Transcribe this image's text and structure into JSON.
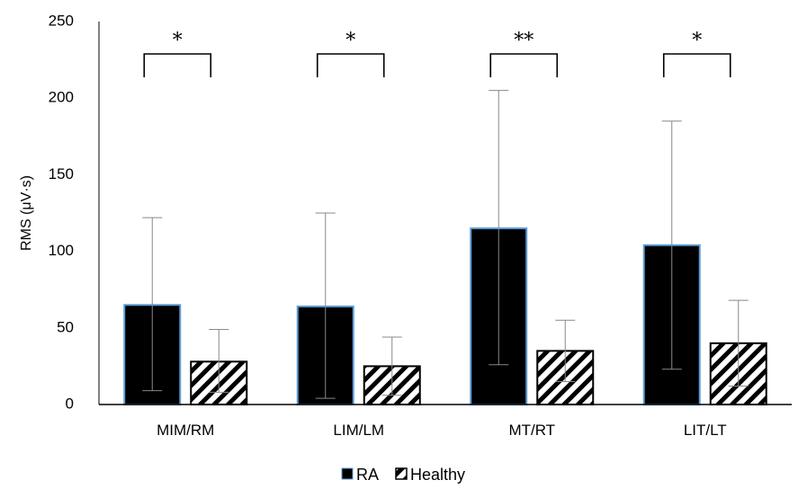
{
  "chart_data": {
    "type": "bar",
    "ylabel": "RMS (μV·s)",
    "ylim": [
      0,
      250
    ],
    "yticks": [
      0,
      50,
      100,
      150,
      200,
      250
    ],
    "categories": [
      "MIM/RM",
      "LIM/LM",
      "MT/RT",
      "LIT/LT"
    ],
    "series": [
      {
        "name": "RA",
        "values": [
          65,
          64,
          115,
          104
        ],
        "error_low": [
          9,
          4,
          26,
          23
        ],
        "error_high": [
          122,
          125,
          205,
          185
        ],
        "fill": "#000000",
        "stroke": "#5b9bd5"
      },
      {
        "name": "Healthy",
        "values": [
          28,
          25,
          35,
          40
        ],
        "error_low": [
          8,
          6,
          15,
          12
        ],
        "error_high": [
          49,
          44,
          55,
          68
        ],
        "fill": "hatch",
        "stroke": "#000000"
      }
    ],
    "significance": [
      "*",
      "*",
      "**",
      "*"
    ],
    "legend_position": "bottom-center",
    "grid": false
  }
}
